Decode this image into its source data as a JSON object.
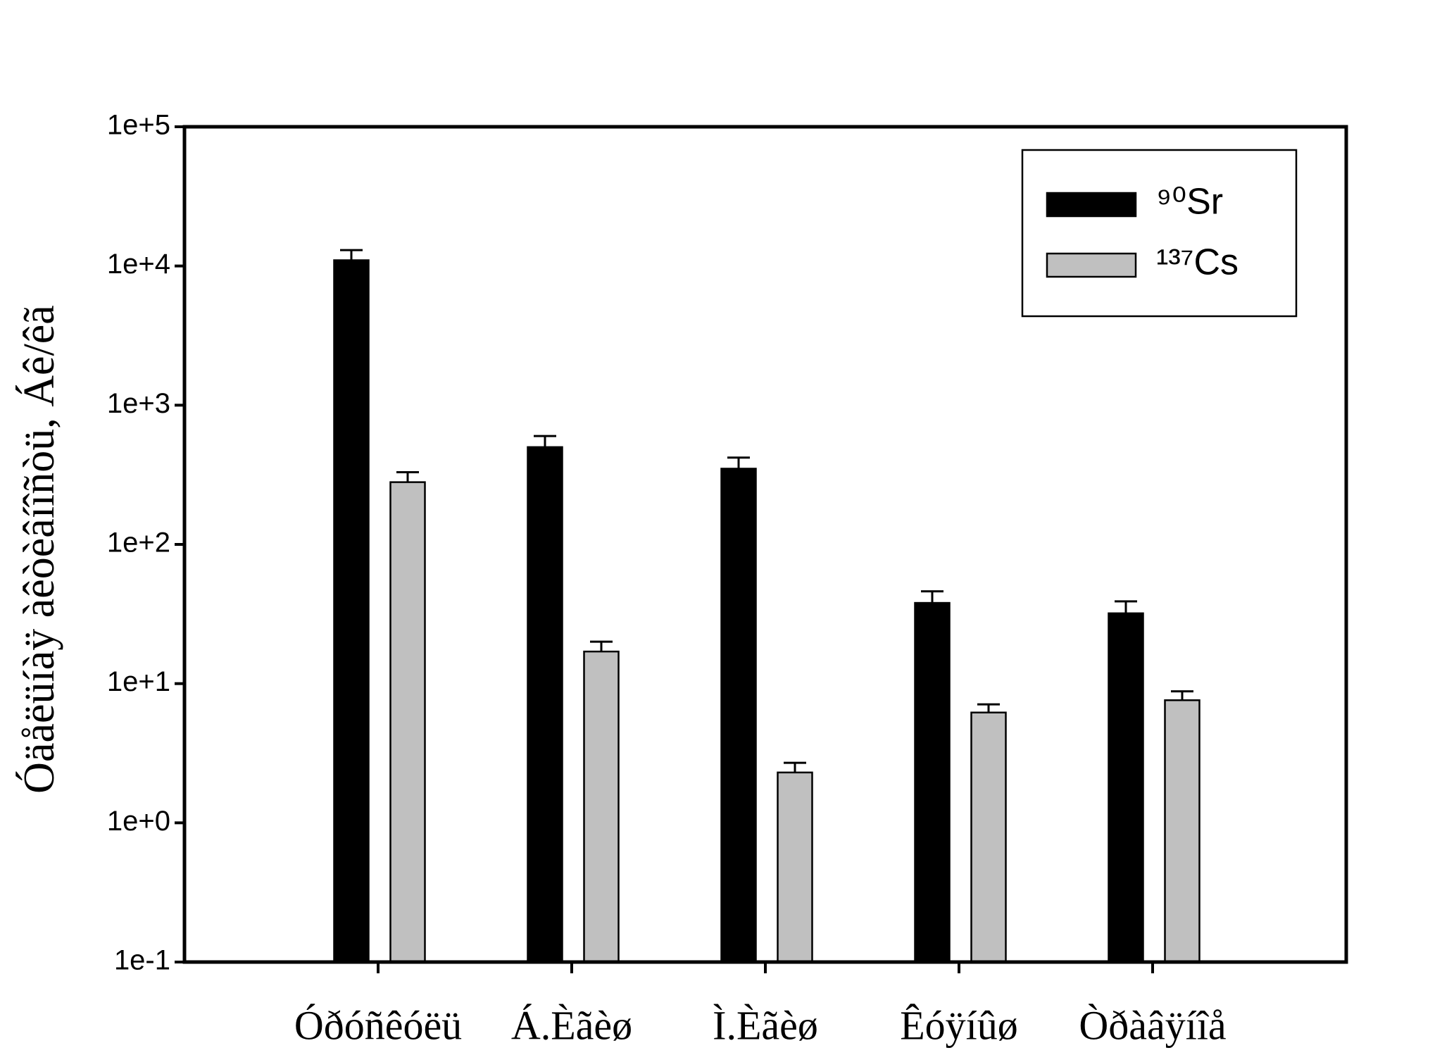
{
  "chart_data": {
    "type": "bar",
    "y_label": "Óäåëüíàÿ àêòèâíîñòü, Áê/êã",
    "categories": [
      "Óðóñêóëü",
      "Á.Èãèø",
      "Ì.Èãèø",
      "Êóÿíûø",
      "Òðàâÿíîå"
    ],
    "series": [
      {
        "name": "⁹⁰Sr",
        "color": "#000000",
        "values": [
          11000,
          500,
          350,
          38,
          32
        ],
        "errors": [
          2000,
          100,
          70,
          8,
          7
        ]
      },
      {
        "name": "¹³⁷Cs",
        "color": "#c0c0c0",
        "values": [
          280,
          17,
          2.3,
          6.2,
          7.6
        ],
        "errors": [
          50,
          3,
          0.4,
          0.9,
          1.2
        ]
      }
    ],
    "log_scale": true,
    "ylim": [
      0.1,
      100000
    ],
    "yticks": [
      {
        "value": 0.1,
        "label": "1e-1"
      },
      {
        "value": 1,
        "label": "1e+0"
      },
      {
        "value": 10,
        "label": "1e+1"
      },
      {
        "value": 100,
        "label": "1e+2"
      },
      {
        "value": 1000,
        "label": "1e+3"
      },
      {
        "value": 10000,
        "label": "1e+4"
      },
      {
        "value": 100000,
        "label": "1e+5"
      }
    ],
    "legend": "upper right"
  }
}
